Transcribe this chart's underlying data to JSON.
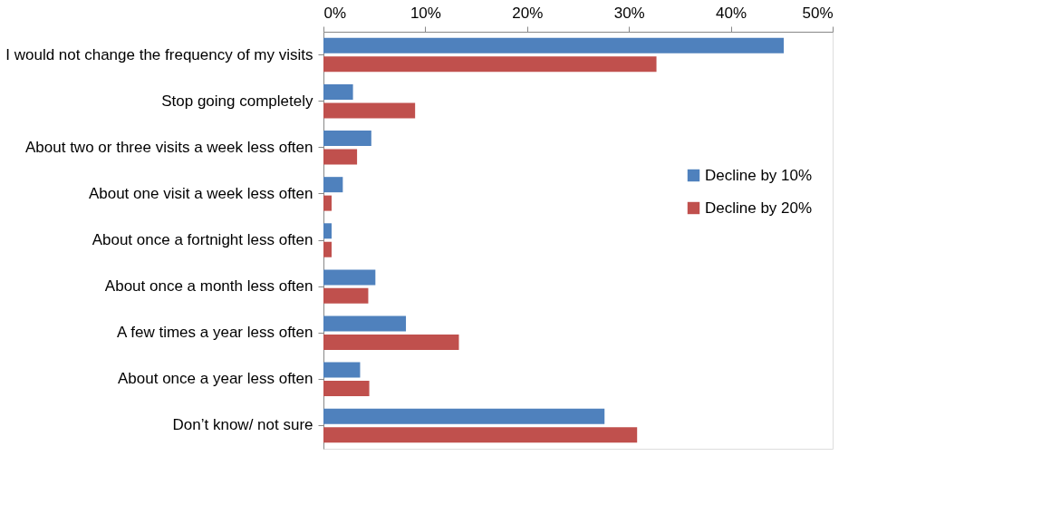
{
  "chart_data": {
    "type": "bar",
    "orientation": "horizontal",
    "categories": [
      "I would not change the frequency of my visits",
      "Stop going completely",
      "About two or three visits a week less often",
      "About one visit a week less often",
      "About once a fortnight less often",
      "About once a month less often",
      "A few times a year less often",
      "About once a year less often",
      "Don’t know/ not sure"
    ],
    "series": [
      {
        "name": "Decline by 10%",
        "color": "#4f81bd",
        "values": [
          45.2,
          2.9,
          4.7,
          1.9,
          0.8,
          5.1,
          8.1,
          3.6,
          27.6
        ]
      },
      {
        "name": "Decline by 20%",
        "color": "#c0504d",
        "values": [
          32.7,
          9.0,
          3.3,
          0.8,
          0.8,
          4.4,
          13.3,
          4.5,
          30.8
        ]
      }
    ],
    "xlim": [
      0,
      50
    ],
    "xticks": [
      {
        "value": 0,
        "label": "0%"
      },
      {
        "value": 10,
        "label": "10%"
      },
      {
        "value": 20,
        "label": "20%"
      },
      {
        "value": 30,
        "label": "30%"
      },
      {
        "value": 40,
        "label": "40%"
      },
      {
        "value": 50,
        "label": "50%"
      }
    ],
    "grid": false,
    "legend": "right"
  }
}
